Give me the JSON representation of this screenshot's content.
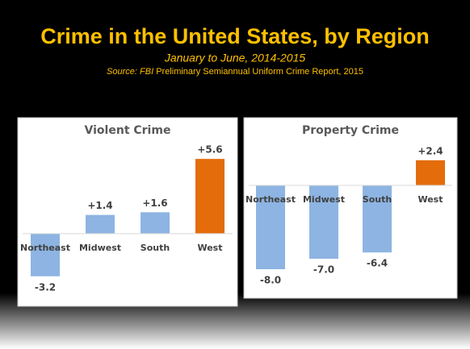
{
  "header": {
    "title": "Crime in the United States, by Region",
    "subtitle": "January to June, 2014-2015",
    "source_label": "Source: FBI",
    "source_text": "Preliminary Semiannual Uniform Crime Report, 2015"
  },
  "chart_data": [
    {
      "type": "bar",
      "title": "Violent Crime",
      "categories": [
        "Northeast",
        "Midwest",
        "South",
        "West"
      ],
      "values": [
        -3.2,
        1.4,
        1.6,
        5.6
      ],
      "value_labels": [
        "-3.2",
        "+1.4",
        "+1.6",
        "+5.6"
      ],
      "colors": [
        "#8db4e2",
        "#8db4e2",
        "#8db4e2",
        "#e46c0a"
      ],
      "ylim": [
        -4,
        7
      ]
    },
    {
      "type": "bar",
      "title": "Property Crime",
      "categories": [
        "Northeast",
        "Midwest",
        "South",
        "West"
      ],
      "values": [
        -8.0,
        -7.0,
        -6.4,
        2.4
      ],
      "value_labels": [
        "-8.0",
        "-7.0",
        "-6.4",
        "+2.4"
      ],
      "colors": [
        "#8db4e2",
        "#8db4e2",
        "#8db4e2",
        "#e46c0a"
      ],
      "ylim": [
        -10,
        4
      ]
    }
  ]
}
